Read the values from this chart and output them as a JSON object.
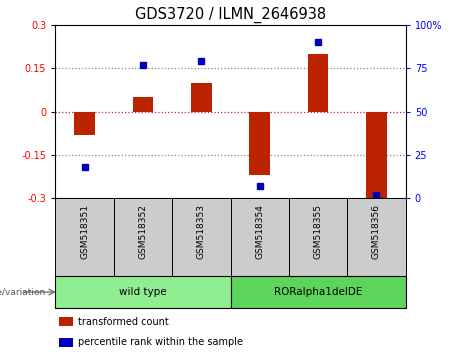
{
  "title": "GDS3720 / ILMN_2646938",
  "samples": [
    "GSM518351",
    "GSM518352",
    "GSM518353",
    "GSM518354",
    "GSM518355",
    "GSM518356"
  ],
  "red_bars": [
    -0.08,
    0.05,
    0.1,
    -0.22,
    0.2,
    -0.3
  ],
  "blue_dots_pct": [
    18,
    77,
    79,
    7,
    90,
    2
  ],
  "ylim_left": [
    -0.3,
    0.3
  ],
  "ylim_right": [
    0,
    100
  ],
  "yticks_left": [
    -0.3,
    -0.15,
    0,
    0.15,
    0.3
  ],
  "yticks_right": [
    0,
    25,
    50,
    75,
    100
  ],
  "ytick_labels_right": [
    "0",
    "25",
    "50",
    "75",
    "100%"
  ],
  "hlines_dotted": [
    -0.15,
    0.15
  ],
  "zero_hline": 0,
  "groups": [
    {
      "label": "wild type",
      "start": 0,
      "end": 3,
      "color": "#90EE90"
    },
    {
      "label": "RORalpha1delDE",
      "start": 3,
      "end": 6,
      "color": "#5DD55D"
    }
  ],
  "genotype_label": "genotype/variation",
  "legend_red_label": "transformed count",
  "legend_blue_label": "percentile rank within the sample",
  "bar_color": "#BB2200",
  "dot_color": "#0000BB",
  "dot_color_legend": "#2222BB",
  "hline_dotted_color": "#888888",
  "zero_line_color": "#CC2222",
  "sample_box_color": "#CCCCCC",
  "bar_width": 0.35,
  "tick_fontsize": 7,
  "title_fontsize": 10.5,
  "label_fontsize": 7,
  "sample_label_fontsize": 6.5
}
